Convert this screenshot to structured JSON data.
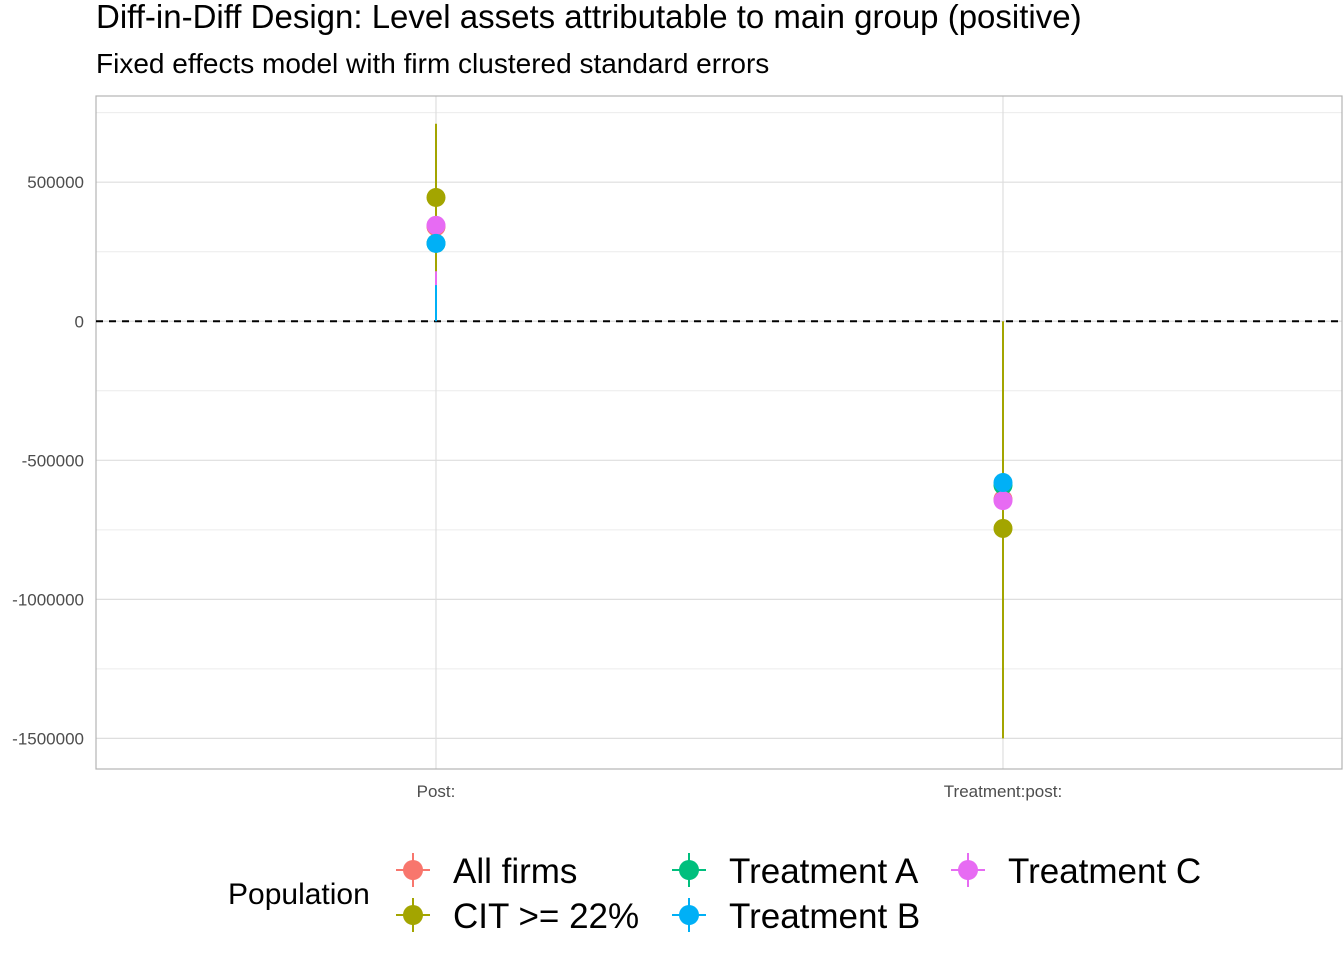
{
  "chart_data": {
    "type": "scatter",
    "title": "Diff-in-Diff Design: Level assets attributable to main group (positive)",
    "subtitle": "Fixed effects model with firm clustered standard errors",
    "xlabel": "",
    "ylabel": "",
    "categories": [
      "Post:",
      "Treatment:post:"
    ],
    "ylim": [
      -1610000,
      810000
    ],
    "yticks": [
      500000,
      0,
      -500000,
      -1000000,
      -1500000
    ],
    "ytick_labels": [
      "500000",
      "0",
      "-500000",
      "-1000000",
      "-1500000"
    ],
    "reference_line": {
      "y": 0,
      "style": "dashed",
      "color": "#000000"
    },
    "grid": true,
    "legend": {
      "title": "Population",
      "position": "bottom"
    },
    "series": [
      {
        "name": "All firms",
        "color": "#F8766D",
        "estimates": [
          340000,
          -640000
        ],
        "lower": [
          200000,
          -1200000
        ],
        "upper": [
          480000,
          -80000
        ]
      },
      {
        "name": "CIT >= 22%",
        "color": "#A3A500",
        "estimates": [
          445000,
          -745000
        ],
        "lower": [
          180000,
          -1500000
        ],
        "upper": [
          710000,
          0
        ]
      },
      {
        "name": "Treatment A",
        "color": "#00BF7D",
        "estimates": [
          280000,
          -590000
        ],
        "lower": [
          100000,
          -1150000
        ],
        "upper": [
          460000,
          -30000
        ]
      },
      {
        "name": "Treatment B",
        "color": "#00B0F6",
        "estimates": [
          280000,
          -580000
        ],
        "lower": [
          0,
          -1150000
        ],
        "upper": [
          560000,
          -10000
        ]
      },
      {
        "name": "Treatment C",
        "color": "#E76BF3",
        "estimates": [
          345000,
          -645000
        ],
        "lower": [
          130000,
          -1250000
        ],
        "upper": [
          560000,
          -40000
        ]
      }
    ]
  }
}
